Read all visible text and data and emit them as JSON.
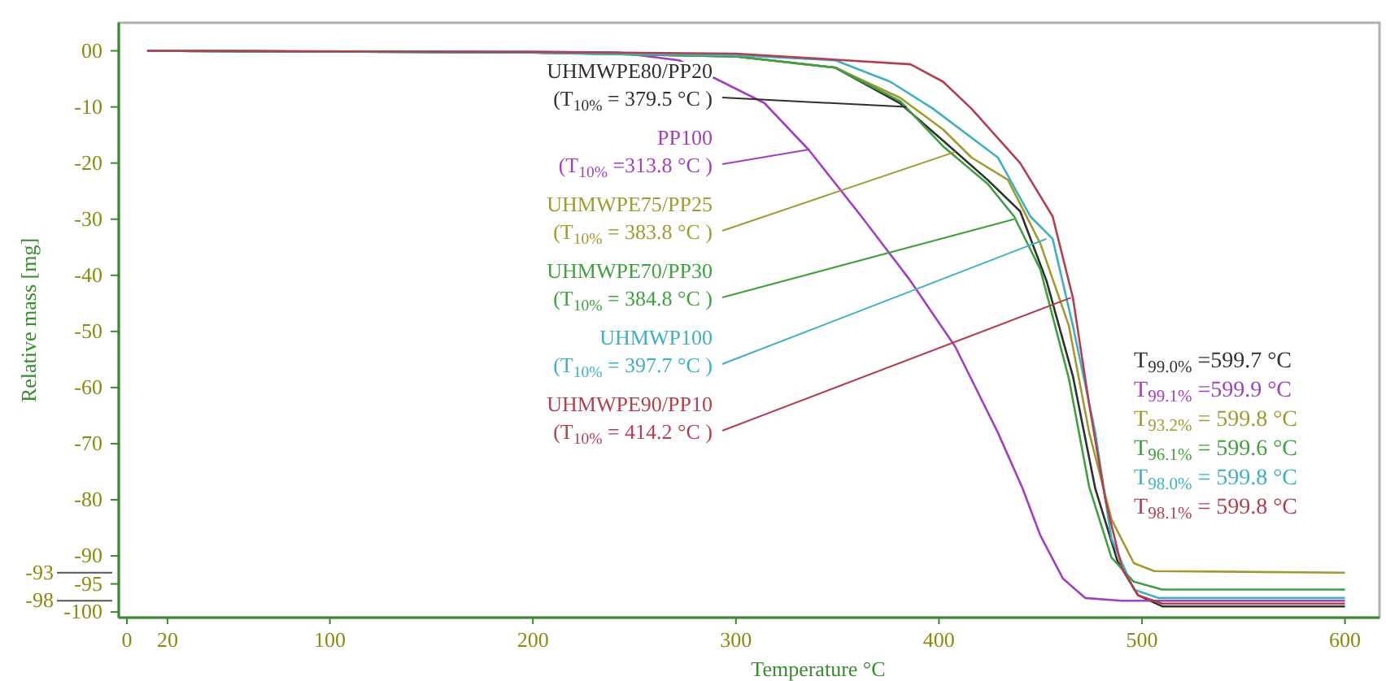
{
  "chart_data": {
    "type": "line",
    "xlabel": "Temperature °C",
    "ylabel": "Relative mass [mg]",
    "xlim": [
      -4,
      617
    ],
    "ylim": [
      -101,
      5
    ],
    "xticks": [
      0,
      20,
      100,
      200,
      300,
      400,
      500,
      600
    ],
    "yticks": [
      {
        "value": 0,
        "label": "00"
      },
      -10,
      -20,
      -30,
      -40,
      -50,
      -60,
      -70,
      -80,
      -90,
      -95,
      -100
    ],
    "ref_lines": [
      {
        "axis": "y",
        "value": -93,
        "label": "-93"
      },
      {
        "axis": "y",
        "value": -98,
        "label": "-98"
      }
    ],
    "grid": false,
    "line_style": "solid",
    "series": [
      {
        "name": "UHMWPE80/PP20",
        "color": "#303030",
        "x": [
          10,
          200,
          300,
          349,
          381,
          402,
          424,
          440,
          453,
          466,
          477,
          488,
          498,
          510,
          600
        ],
        "values": [
          0,
          -0.3,
          -1,
          -3,
          -9.4,
          -16,
          -23,
          -28.6,
          -41,
          -58,
          -78,
          -91,
          -97,
          -99,
          -99
        ]
      },
      {
        "name": "PP100",
        "color": "#a040c0",
        "x": [
          10,
          200,
          242,
          272,
          314,
          336,
          362,
          386,
          408,
          429,
          441,
          450,
          461,
          472,
          490,
          600
        ],
        "values": [
          0,
          -0.2,
          -0.3,
          -1.7,
          -9.3,
          -17.7,
          -29.6,
          -41,
          -52.7,
          -68,
          -77.8,
          -86.4,
          -94,
          -97.5,
          -98,
          -98
        ]
      },
      {
        "name": "UHMWPE75/PP25",
        "color": "#a09a30",
        "x": [
          10,
          200,
          300,
          349,
          381,
          402,
          416,
          434,
          450,
          464,
          474,
          485,
          496,
          506,
          600
        ],
        "values": [
          0,
          -0.3,
          -1,
          -3,
          -8.4,
          -14,
          -19,
          -23,
          -34.4,
          -49,
          -68,
          -83.5,
          -91.3,
          -92.7,
          -93
        ]
      },
      {
        "name": "UHMWPE70/PP30",
        "color": "#40a040",
        "x": [
          10,
          200,
          300,
          349,
          381,
          402,
          424,
          437,
          450,
          464,
          474,
          485,
          496,
          510,
          600
        ],
        "values": [
          0,
          -0.3,
          -1,
          -3,
          -9,
          -17,
          -23.7,
          -29.5,
          -39,
          -58.4,
          -77.7,
          -90.3,
          -94.6,
          -96,
          -96
        ]
      },
      {
        "name": "UHMWP100",
        "color": "#40b0c0",
        "x": [
          10,
          200,
          300,
          349,
          376,
          397,
          429,
          445,
          456,
          466,
          477,
          485,
          496,
          508,
          600
        ],
        "values": [
          0,
          -0.3,
          -0.8,
          -1.7,
          -5.5,
          -10.3,
          -19,
          -29.5,
          -33.5,
          -49,
          -68,
          -87,
          -96,
          -97.5,
          -97.5
        ]
      },
      {
        "name": "UHMWPE90/PP10",
        "color": "#b04050",
        "x": [
          10,
          200,
          300,
          386,
          402,
          416,
          440,
          456,
          466,
          474,
          482,
          490,
          498,
          510,
          600
        ],
        "values": [
          0,
          -0.2,
          -0.5,
          -2.4,
          -5.5,
          -10.3,
          -20,
          -29.5,
          -44,
          -63,
          -80,
          -92,
          -97,
          -98.5,
          -98.5
        ]
      }
    ],
    "annotations": [
      {
        "text": "(T$_{10%}$ = 379.5 °C )",
        "x": 384,
        "y": -10
      },
      {
        "text": "(T$_{10%}$ =313.8 °C )",
        "x": 336,
        "y": -17.6
      },
      {
        "text": "(T$_{10%}$ = 383.8 °C )",
        "x": 408,
        "y": -18
      },
      {
        "text": "(T$_{10%}$ = 384.8 °C )",
        "x": 437,
        "y": -30
      },
      {
        "text": "(T$_{10%}$ = 397.7 °C )",
        "x": 453,
        "y": -33.5
      },
      {
        "text": "(T$_{10%}$ = 414.2 °C )",
        "x": 465,
        "y": -44
      },
      "T$_{99.0%}$ =599.7 °C",
      "T$_{99.1%}$ =599.9 °C",
      "T$_{93.2%}$ = 599.8 °C",
      "T$_{96.1%}$ = 599.6 °C",
      "T$_{98.0%}$ = 599.8 °C",
      "T$_{98.1%}$ = 599.8 °C"
    ]
  }
}
